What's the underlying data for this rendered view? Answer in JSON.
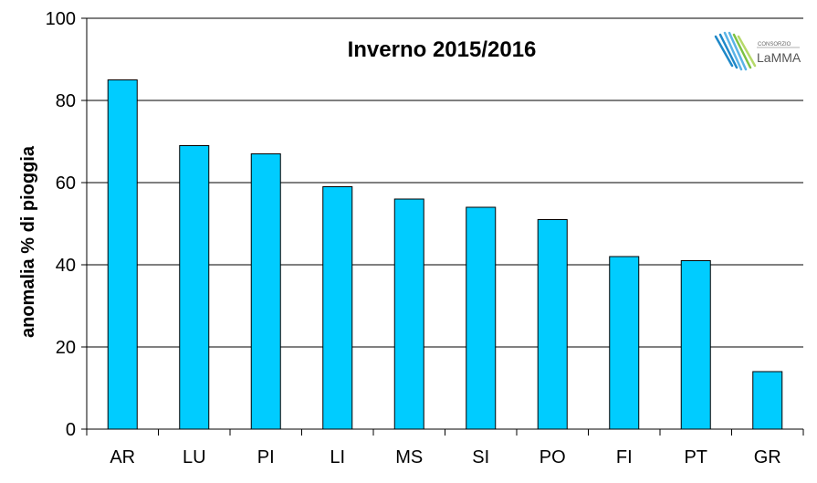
{
  "chart_data": {
    "type": "bar",
    "title": "Inverno 2015/2016",
    "ylabel": "anomalia % di pioggia",
    "xlabel": "",
    "categories": [
      "AR",
      "LU",
      "PI",
      "LI",
      "MS",
      "SI",
      "PO",
      "FI",
      "PT",
      "GR"
    ],
    "values": [
      85,
      69,
      67,
      59,
      56,
      54,
      51,
      42,
      41,
      14
    ],
    "ylim": [
      0,
      100
    ],
    "yticks": [
      0,
      20,
      40,
      60,
      80,
      100
    ],
    "grid": true,
    "bar_color": "#00ccff",
    "bar_edge_color": "#000000"
  },
  "logo": {
    "small_text": "CONSORZIO",
    "big_text": "LaMMA",
    "colors": [
      "#1e88c8",
      "#5ab4e6",
      "#7cc242",
      "#b6d96a"
    ]
  }
}
